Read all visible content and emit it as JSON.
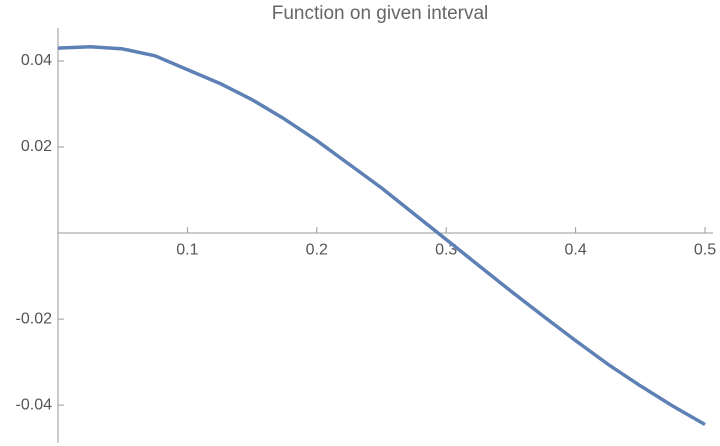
{
  "chart_data": {
    "type": "line",
    "title": "Function on given interval",
    "x": [
      0,
      0.025,
      0.05,
      0.075,
      0.1,
      0.125,
      0.15,
      0.175,
      0.2,
      0.225,
      0.25,
      0.275,
      0.3,
      0.325,
      0.35,
      0.375,
      0.4,
      0.425,
      0.45,
      0.475,
      0.5
    ],
    "series": [
      {
        "color": "#5e81b5",
        "values": [
          0.043,
          0.0433,
          0.0428,
          0.0412,
          0.038,
          0.0348,
          0.031,
          0.0265,
          0.0215,
          0.016,
          0.0105,
          0.0045,
          -0.0015,
          -0.0075,
          -0.0135,
          -0.0193,
          -0.025,
          -0.0305,
          -0.0355,
          -0.0402,
          -0.0445
        ]
      }
    ],
    "xlim": [
      0,
      0.5
    ],
    "ylim": [
      -0.0488,
      0.0472
    ],
    "xticks": [
      0.1,
      0.2,
      0.3,
      0.4,
      0.5
    ],
    "yticks": [
      -0.04,
      -0.02,
      0.02,
      0.04
    ]
  }
}
